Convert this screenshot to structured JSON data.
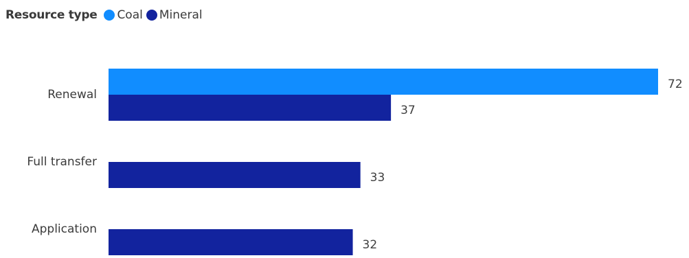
{
  "legend": {
    "title": "Resource type",
    "items": [
      {
        "label": "Coal",
        "color": "#118DFF"
      },
      {
        "label": "Mineral",
        "color": "#12239E"
      }
    ]
  },
  "chart_data": {
    "type": "bar",
    "orientation": "horizontal",
    "categories": [
      "Renewal",
      "Full transfer",
      "Application"
    ],
    "series": [
      {
        "name": "Coal",
        "values": [
          72,
          null,
          null
        ],
        "color": "#118DFF"
      },
      {
        "name": "Mineral",
        "values": [
          37,
          33,
          32
        ],
        "color": "#12239E"
      }
    ],
    "data_labels": true,
    "grid": false,
    "legend_position": "top-left",
    "xlim": [
      0,
      72
    ]
  }
}
